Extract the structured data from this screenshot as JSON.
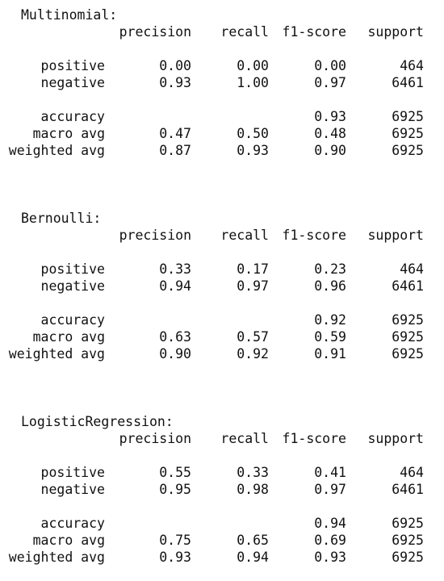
{
  "headers": {
    "precision": "precision",
    "recall": "recall",
    "f1": "f1-score",
    "support": "support"
  },
  "reports": [
    {
      "title": "Multinomial:",
      "rows": [
        {
          "label": "positive",
          "precision": "0.00",
          "recall": "0.00",
          "f1": "0.00",
          "support": "464"
        },
        {
          "label": "negative",
          "precision": "0.93",
          "recall": "1.00",
          "f1": "0.97",
          "support": "6461"
        }
      ],
      "accuracy": {
        "label": "accuracy",
        "f1": "0.93",
        "support": "6925"
      },
      "macro": {
        "label": "macro avg",
        "precision": "0.47",
        "recall": "0.50",
        "f1": "0.48",
        "support": "6925"
      },
      "weighted": {
        "label": "weighted avg",
        "precision": "0.87",
        "recall": "0.93",
        "f1": "0.90",
        "support": "6925"
      }
    },
    {
      "title": "Bernoulli:",
      "rows": [
        {
          "label": "positive",
          "precision": "0.33",
          "recall": "0.17",
          "f1": "0.23",
          "support": "464"
        },
        {
          "label": "negative",
          "precision": "0.94",
          "recall": "0.97",
          "f1": "0.96",
          "support": "6461"
        }
      ],
      "accuracy": {
        "label": "accuracy",
        "f1": "0.92",
        "support": "6925"
      },
      "macro": {
        "label": "macro avg",
        "precision": "0.63",
        "recall": "0.57",
        "f1": "0.59",
        "support": "6925"
      },
      "weighted": {
        "label": "weighted avg",
        "precision": "0.90",
        "recall": "0.92",
        "f1": "0.91",
        "support": "6925"
      }
    },
    {
      "title": "LogisticRegression:",
      "rows": [
        {
          "label": "positive",
          "precision": "0.55",
          "recall": "0.33",
          "f1": "0.41",
          "support": "464"
        },
        {
          "label": "negative",
          "precision": "0.95",
          "recall": "0.98",
          "f1": "0.97",
          "support": "6461"
        }
      ],
      "accuracy": {
        "label": "accuracy",
        "f1": "0.94",
        "support": "6925"
      },
      "macro": {
        "label": "macro avg",
        "precision": "0.75",
        "recall": "0.65",
        "f1": "0.69",
        "support": "6925"
      },
      "weighted": {
        "label": "weighted avg",
        "precision": "0.93",
        "recall": "0.94",
        "f1": "0.93",
        "support": "6925"
      }
    }
  ]
}
